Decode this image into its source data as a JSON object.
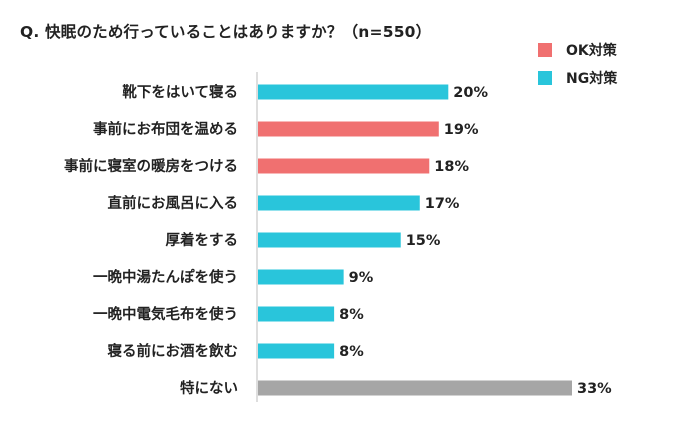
{
  "chart_data": {
    "type": "bar",
    "orientation": "horizontal",
    "title": "Q. 快眠のため行っていることはありますか？（n=550）",
    "value_suffix": "%",
    "xlim": [
      0,
      33
    ],
    "categories": [
      "靴下をはいて寝る",
      "事前にお布団を温める",
      "事前に寝室の暖房をつける",
      "直前にお風呂に入る",
      "厚着をする",
      "一晩中湯たんぽを使う",
      "一晩中電気毛布を使う",
      "寝る前にお酒を飲む",
      "特にない"
    ],
    "values": [
      20,
      19,
      18,
      17,
      15,
      9,
      8,
      8,
      33
    ],
    "groups": [
      "NG",
      "OK",
      "OK",
      "NG",
      "NG",
      "NG",
      "NG",
      "NG",
      "none"
    ],
    "legend": [
      {
        "key": "OK",
        "label": "OK対策",
        "color": "#F07070"
      },
      {
        "key": "NG",
        "label": "NG対策",
        "color": "#29C5DB"
      }
    ],
    "colors": {
      "OK": "#F07070",
      "NG": "#29C5DB",
      "none": "#A6A6A6"
    },
    "legend_position": "top-right"
  }
}
